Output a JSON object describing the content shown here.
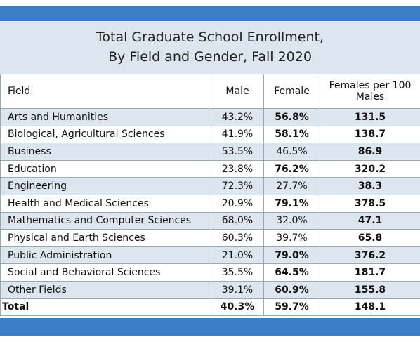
{
  "title": [
    "Total Graduate School Enrollment,",
    "By Field and Gender, Fall 2020"
  ],
  "table": {
    "header": [
      "Field",
      "Male",
      "Female",
      "Females per 100 Males"
    ],
    "rows": [
      [
        "Arts and Humanities",
        "43.2%",
        "56.8%",
        "131.5"
      ],
      [
        "Biological, Agricultural Sciences",
        "41.9%",
        "58.1%",
        "138.7"
      ],
      [
        "Business",
        "53.5%",
        "46.5%",
        "86.9"
      ],
      [
        "Education",
        "23.8%",
        "76.2%",
        "320.2"
      ],
      [
        "Engineering",
        "72.3%",
        "27.7%",
        "38.3"
      ],
      [
        "Health and Medical Sciences",
        "20.9%",
        "79.1%",
        "378.5"
      ],
      [
        "Mathematics and Computer Sciences",
        "68.0%",
        "32.0%",
        "47.1"
      ],
      [
        "Physical and Earth Sciences",
        "60.3%",
        "39.7%",
        "65.8"
      ],
      [
        "Public Administration",
        "21.0%",
        "79.0%",
        "376.2"
      ],
      [
        "Social and Behavioral Sciences",
        "35.5%",
        "64.5%",
        "181.7"
      ],
      [
        "Other Fields",
        "39.1%",
        "60.9%",
        "155.8"
      ]
    ],
    "total": [
      "Total",
      "40.3%",
      "59.7%",
      "148.1"
    ]
  }
}
